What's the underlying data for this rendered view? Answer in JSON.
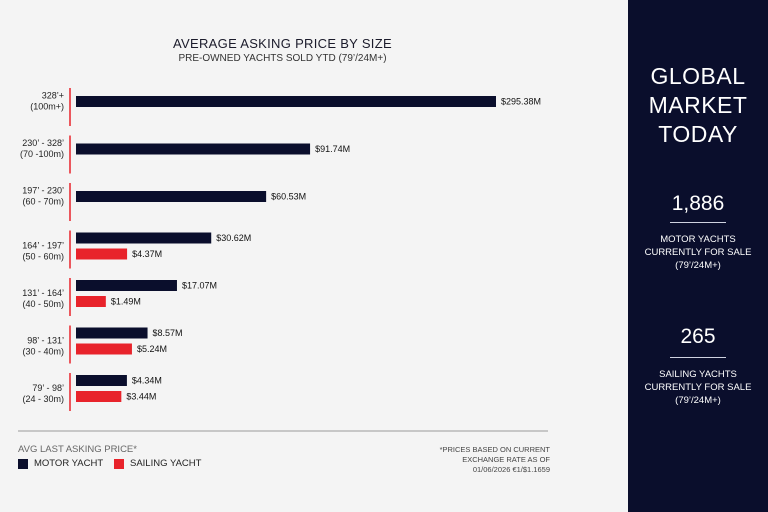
{
  "chart_data": {
    "type": "bar",
    "title": "AVERAGE ASKING PRICE BY SIZE",
    "subtitle": "PRE-OWNED YACHTS SOLD YTD (79’/24M+)",
    "categories": [
      {
        "feet": "328’+",
        "meters": "(100m+)"
      },
      {
        "feet": "230’ - 328’",
        "meters": "(70 -100m)"
      },
      {
        "feet": "197’ - 230’",
        "meters": "(60 - 70m)"
      },
      {
        "feet": "164’ - 197’",
        "meters": "(50 - 60m)"
      },
      {
        "feet": "131’ - 164’",
        "meters": "(40 - 50m)"
      },
      {
        "feet": "98’ - 131’",
        "meters": "(30 - 40m)"
      },
      {
        "feet": "79’ - 98’",
        "meters": "(24 - 30m)"
      }
    ],
    "series": [
      {
        "name": "MOTOR YACHT",
        "color": "#0a0e2c",
        "values": [
          295.38,
          91.74,
          60.53,
          30.62,
          17.07,
          8.57,
          4.34
        ],
        "labels": [
          "$295.38M",
          "$91.74M",
          "$60.53M",
          "$30.62M",
          "$17.07M",
          "$8.57M",
          "$4.34M"
        ]
      },
      {
        "name": "SAILING YACHT",
        "color": "#e8232b",
        "values": [
          null,
          null,
          null,
          4.37,
          1.49,
          5.24,
          3.44
        ],
        "labels": [
          null,
          null,
          null,
          "$4.37M",
          "$1.49M",
          "$5.24M",
          "$3.44M"
        ]
      }
    ],
    "scale": "nonlinear",
    "legend_title": "AVG LAST ASKING PRICE*",
    "legend_position": "bottom-left"
  },
  "footnote": [
    "*PRICES BASED ON CURRENT",
    "EXCHANGE RATE AS OF",
    "01/06/2026 €1/$1.1659"
  ],
  "side": {
    "title_lines": [
      "GLOBAL",
      "MARKET",
      "TODAY"
    ],
    "motor_count": "1,886",
    "motor_lines": [
      "MOTOR YACHTS",
      "CURRENTLY FOR SALE",
      "(79’/24M+)"
    ],
    "sailing_count": "265",
    "sailing_lines": [
      "SAILING YACHTS",
      "CURRENTLY FOR SALE",
      "(79’/24M+)"
    ]
  }
}
